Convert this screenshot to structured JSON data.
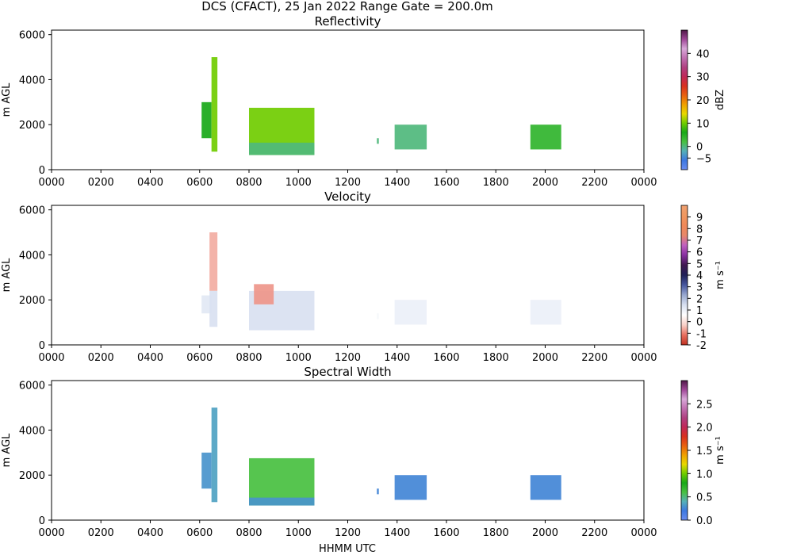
{
  "figure": {
    "title": "DCS (CFACT), 25 Jan 2022 Range Gate = 200.0m",
    "xlabel": "HHMM UTC"
  },
  "chart_data": [
    {
      "type": "heatmap",
      "title": "Reflectivity",
      "ylabel": "m AGL",
      "xlabel": "",
      "x_ticks": [
        "0000",
        "0200",
        "0400",
        "0600",
        "0800",
        "1000",
        "1200",
        "1400",
        "1600",
        "1800",
        "2000",
        "2200",
        "0000"
      ],
      "y_ticks": [
        "0",
        "2000",
        "4000",
        "6000"
      ],
      "xlim": [
        0,
        2400
      ],
      "ylim": [
        0,
        6200
      ],
      "colorbar": {
        "label": "dBZ",
        "ticks": [
          -5,
          0,
          10,
          20,
          30,
          40
        ],
        "tick_labels": [
          "−5",
          "0",
          "10",
          "20",
          "30",
          "40"
        ],
        "range": [
          -10,
          50
        ],
        "stops": [
          "#6a8cf0",
          "#3c78e0",
          "#55b0b8",
          "#48c040",
          "#18a818",
          "#70cc00",
          "#e8d800",
          "#f0a000",
          "#e86010",
          "#d83020",
          "#c02858",
          "#b04080",
          "#c070b0",
          "#d8a8d8",
          "#a04898",
          "#501848"
        ]
      },
      "regions": [
        {
          "name": "0600-cell",
          "x": [
            608,
            648
          ],
          "y": [
            1400,
            3000
          ],
          "value": 6
        },
        {
          "name": "0630-plume",
          "x": [
            648,
            672
          ],
          "y": [
            800,
            5000
          ],
          "value": 10
        },
        {
          "name": "0800-block",
          "x": [
            800,
            1065
          ],
          "y": [
            650,
            2750
          ],
          "value": 10
        },
        {
          "name": "0800-base",
          "x": [
            800,
            1065
          ],
          "y": [
            650,
            1200
          ],
          "value": 0
        },
        {
          "name": "1330-speck",
          "x": [
            1318,
            1326
          ],
          "y": [
            1150,
            1400
          ],
          "value": 0
        },
        {
          "name": "1400-1500-patch",
          "x": [
            1390,
            1520
          ],
          "y": [
            900,
            2000
          ],
          "value": 0
        },
        {
          "name": "1930-2100-block",
          "x": [
            1940,
            2065
          ],
          "y": [
            900,
            2000
          ],
          "value": 4
        }
      ]
    },
    {
      "type": "heatmap",
      "title": "Velocity",
      "ylabel": "m AGL",
      "xlabel": "",
      "x_ticks": [
        "0000",
        "0200",
        "0400",
        "0600",
        "0800",
        "1000",
        "1200",
        "1400",
        "1600",
        "1800",
        "2000",
        "2200",
        "0000"
      ],
      "y_ticks": [
        "0",
        "2000",
        "4000",
        "6000"
      ],
      "xlim": [
        0,
        2400
      ],
      "ylim": [
        0,
        6200
      ],
      "colorbar": {
        "label": "m s⁻¹",
        "ticks": [
          -2,
          -1,
          0,
          1,
          2,
          3,
          4,
          5,
          6,
          7,
          8,
          9
        ],
        "tick_labels": [
          "-2",
          "-1",
          "0",
          "1",
          "2",
          "3",
          "4",
          "5",
          "6",
          "7",
          "8",
          "9"
        ],
        "range": [
          -2,
          10
        ],
        "stops": [
          "#c03020",
          "#e87060",
          "#f8d0c8",
          "#ffffff",
          "#d8e0f0",
          "#98a8d0",
          "#4858a0",
          "#202058",
          "#401850",
          "#8830a0",
          "#c060c0",
          "#e88868",
          "#f08858",
          "#f09860",
          "#f0a070"
        ]
      },
      "regions": [
        {
          "name": "0600-cell",
          "x": [
            608,
            648
          ],
          "y": [
            1400,
            2200
          ],
          "value": 1.2
        },
        {
          "name": "0630-plume",
          "x": [
            640,
            672
          ],
          "y": [
            2400,
            5000
          ],
          "value": -0.6
        },
        {
          "name": "0630-lower",
          "x": [
            640,
            672
          ],
          "y": [
            800,
            2400
          ],
          "value": 1.4
        },
        {
          "name": "0800-block",
          "x": [
            800,
            1065
          ],
          "y": [
            650,
            2400
          ],
          "value": 1.4
        },
        {
          "name": "0830-top",
          "x": [
            820,
            900
          ],
          "y": [
            1800,
            2700
          ],
          "value": -0.8
        },
        {
          "name": "1330-speck",
          "x": [
            1318,
            1326
          ],
          "y": [
            1150,
            1400
          ],
          "value": 0.8
        },
        {
          "name": "1400-1500-patch",
          "x": [
            1390,
            1520
          ],
          "y": [
            900,
            2000
          ],
          "value": 1.0
        },
        {
          "name": "1930-2100-block",
          "x": [
            1940,
            2065
          ],
          "y": [
            900,
            2000
          ],
          "value": 1.0
        }
      ]
    },
    {
      "type": "heatmap",
      "title": "Spectral Width",
      "ylabel": "m AGL",
      "xlabel": "HHMM UTC",
      "x_ticks": [
        "0000",
        "0200",
        "0400",
        "0600",
        "0800",
        "1000",
        "1200",
        "1400",
        "1600",
        "1800",
        "2000",
        "2200",
        "0000"
      ],
      "y_ticks": [
        "0",
        "2000",
        "4000",
        "6000"
      ],
      "xlim": [
        0,
        2400
      ],
      "ylim": [
        0,
        6200
      ],
      "colorbar": {
        "label": "m s⁻¹",
        "ticks": [
          0.0,
          0.5,
          1.0,
          1.5,
          2.0,
          2.5
        ],
        "tick_labels": [
          "0.0",
          "0.5",
          "1.0",
          "1.5",
          "2.0",
          "2.5"
        ],
        "range": [
          0,
          3
        ],
        "stops": [
          "#6a8cf0",
          "#3c78e0",
          "#55b0b8",
          "#48c040",
          "#18a818",
          "#70cc00",
          "#e8d800",
          "#f0a000",
          "#e86010",
          "#d83020",
          "#c02858",
          "#b04080",
          "#c070b0",
          "#d8a8d8",
          "#a04898",
          "#501848"
        ]
      },
      "regions": [
        {
          "name": "0600-cell",
          "x": [
            608,
            648
          ],
          "y": [
            1400,
            3000
          ],
          "value": 0.3
        },
        {
          "name": "0630-plume",
          "x": [
            648,
            672
          ],
          "y": [
            800,
            5000
          ],
          "value": 0.35
        },
        {
          "name": "0800-block",
          "x": [
            800,
            1065
          ],
          "y": [
            650,
            2750
          ],
          "value": 0.6
        },
        {
          "name": "0800-base",
          "x": [
            800,
            1065
          ],
          "y": [
            650,
            1000
          ],
          "value": 0.3
        },
        {
          "name": "1330-speck",
          "x": [
            1318,
            1326
          ],
          "y": [
            1150,
            1400
          ],
          "value": 0.25
        },
        {
          "name": "1400-1500-patch",
          "x": [
            1390,
            1520
          ],
          "y": [
            900,
            2000
          ],
          "value": 0.25
        },
        {
          "name": "1930-2100-block",
          "x": [
            1940,
            2065
          ],
          "y": [
            900,
            2000
          ],
          "value": 0.25
        }
      ]
    }
  ]
}
